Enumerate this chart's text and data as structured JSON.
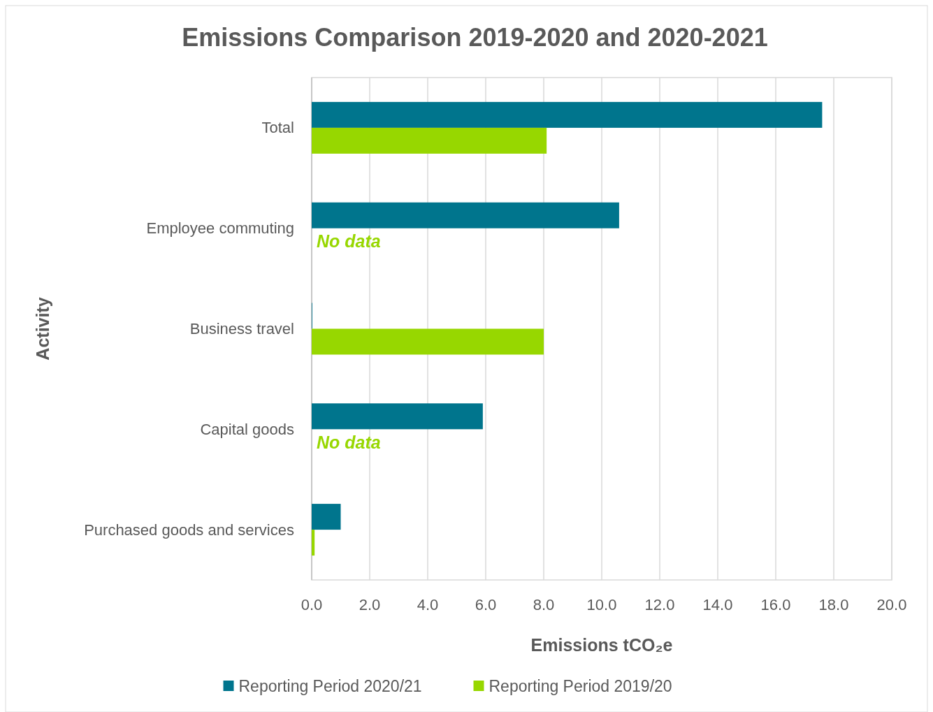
{
  "chart_data": {
    "type": "bar",
    "orientation": "horizontal",
    "title": "Emissions Comparison 2019-2020 and 2020-2021",
    "xlabel": "Emissions tCO₂e",
    "ylabel": "Activity",
    "categories": [
      "Total",
      "Employee commuting",
      "Business travel",
      "Capital goods",
      "Purchased goods and services"
    ],
    "series": [
      {
        "name": "Reporting Period 2020/21",
        "color": "#00758d",
        "values": [
          17.6,
          10.6,
          0.02,
          5.9,
          1.0
        ]
      },
      {
        "name": "Reporting Period 2019/20",
        "color": "#97d700",
        "values": [
          8.1,
          null,
          8.0,
          null,
          0.1
        ]
      }
    ],
    "xlim": [
      0,
      20
    ],
    "xticks": [
      {
        "value": 0,
        "label": "0.0"
      },
      {
        "value": 2,
        "label": "2.0"
      },
      {
        "value": 4,
        "label": "4.0"
      },
      {
        "value": 6,
        "label": "6.0"
      },
      {
        "value": 8,
        "label": "8.0"
      },
      {
        "value": 10,
        "label": "10.0"
      },
      {
        "value": 12,
        "label": "12.0"
      },
      {
        "value": 14,
        "label": "14.0"
      },
      {
        "value": 16,
        "label": "16.0"
      },
      {
        "value": 18,
        "label": "18.0"
      },
      {
        "value": 20,
        "label": "20.0"
      }
    ],
    "grid": "x",
    "legend": "bottom",
    "annotations": [
      {
        "text": "No data",
        "x": 0,
        "y": "Employee commuting"
      },
      {
        "text": "No data",
        "x": 0,
        "y": "Capital goods"
      }
    ]
  }
}
